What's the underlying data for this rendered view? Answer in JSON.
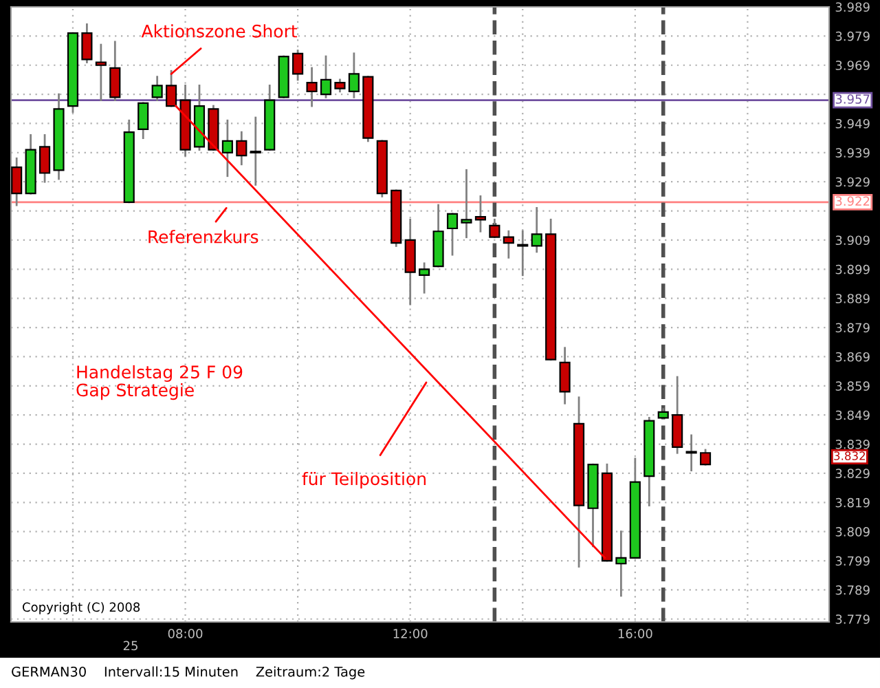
{
  "chart_data": {
    "type": "candlestick",
    "x": [
      5.0,
      5.25,
      5.5,
      5.75,
      6.0,
      6.25,
      6.5,
      6.75,
      7.0,
      7.25,
      7.5,
      7.75,
      8.0,
      8.25,
      8.5,
      8.75,
      9.0,
      9.25,
      9.5,
      9.75,
      10.0,
      10.25,
      10.5,
      10.75,
      11.0,
      11.25,
      11.5,
      11.75,
      12.0,
      12.25,
      12.5,
      12.75,
      13.0,
      13.25,
      13.5,
      13.75,
      14.0,
      14.25,
      14.5,
      14.75,
      15.0,
      15.25,
      15.5,
      15.75,
      16.0,
      16.25,
      16.5,
      16.75,
      17.0,
      17.25
    ],
    "ohlc": [
      [
        3934,
        3937,
        3921,
        3925
      ],
      [
        3925,
        3945,
        3925,
        3940
      ],
      [
        3941,
        3945,
        3929,
        3932
      ],
      [
        3933,
        3959,
        3930,
        3954
      ],
      [
        3955,
        3980,
        3953,
        3980
      ],
      [
        3980,
        3983,
        3970,
        3971
      ],
      [
        3970,
        3976,
        3957,
        3969
      ],
      [
        3968,
        3977,
        3957,
        3958
      ],
      [
        3922,
        3950,
        3922,
        3946
      ],
      [
        3947,
        3956,
        3944,
        3956
      ],
      [
        3958,
        3965,
        3957,
        3962
      ],
      [
        3962,
        3967,
        3955,
        3955
      ],
      [
        3957,
        3962,
        3938,
        3940
      ],
      [
        3941,
        3962,
        3940,
        3955
      ],
      [
        3954,
        3955,
        3940,
        3940
      ],
      [
        3939,
        3950,
        3931,
        3943
      ],
      [
        3943,
        3946,
        3935,
        3938
      ],
      [
        3939,
        3951,
        3928,
        3939
      ],
      [
        3940,
        3962,
        3940,
        3957
      ],
      [
        3958,
        3972,
        3958,
        3972
      ],
      [
        3973,
        3974,
        3964,
        3966
      ],
      [
        3963,
        3968,
        3955,
        3960
      ],
      [
        3959,
        3972,
        3958,
        3964
      ],
      [
        3963,
        3964,
        3960,
        3961
      ],
      [
        3960,
        3973,
        3958,
        3966
      ],
      [
        3965,
        3965,
        3943,
        3944
      ],
      [
        3943,
        3943,
        3924,
        3925
      ],
      [
        3926,
        3926,
        3907,
        3908
      ],
      [
        3909,
        3916,
        3887,
        3898
      ],
      [
        3897,
        3901,
        3891,
        3899
      ],
      [
        3900,
        3921,
        3900,
        3912
      ],
      [
        3913,
        3918,
        3904,
        3918
      ],
      [
        3915,
        3933,
        3910,
        3916
      ],
      [
        3917,
        3924,
        3912,
        3916
      ],
      [
        3914,
        3916,
        3910,
        3910
      ],
      [
        3910,
        3912,
        3903,
        3908
      ],
      [
        3907,
        3912,
        3897,
        3907
      ],
      [
        3907,
        3920,
        3905,
        3911
      ],
      [
        3911,
        3916,
        3868,
        3868
      ],
      [
        3867,
        3872,
        3853,
        3857
      ],
      [
        3846,
        3855,
        3797,
        3818
      ],
      [
        3817,
        3832,
        3804,
        3832
      ],
      [
        3829,
        3832,
        3799,
        3799
      ],
      [
        3798,
        3809,
        3787,
        3800
      ],
      [
        3800,
        3834,
        3800,
        3826
      ],
      [
        3828,
        3848,
        3818,
        3847
      ],
      [
        3848,
        3851,
        3848,
        3850
      ],
      [
        3849,
        3862,
        3836,
        3838
      ],
      [
        3836,
        3842,
        3830,
        3836
      ],
      [
        3836,
        3837,
        3832,
        3832
      ]
    ],
    "colors": [
      "#c80000",
      "#1ec81e",
      "#c80000",
      "#1ec81e",
      "#1ec81e",
      "#c80000",
      "#c80000",
      "#c80000",
      "#1ec81e",
      "#1ec81e",
      "#1ec81e",
      "#c80000",
      "#c80000",
      "#1ec81e",
      "#c80000",
      "#1ec81e",
      "#c80000",
      "#000000",
      "#1ec81e",
      "#1ec81e",
      "#c80000",
      "#c80000",
      "#1ec81e",
      "#c80000",
      "#1ec81e",
      "#c80000",
      "#c80000",
      "#c80000",
      "#c80000",
      "#1ec81e",
      "#1ec81e",
      "#1ec81e",
      "#1ec81e",
      "#c80000",
      "#c80000",
      "#c80000",
      "#000000",
      "#1ec81e",
      "#c80000",
      "#c80000",
      "#c80000",
      "#1ec81e",
      "#c80000",
      "#1ec81e",
      "#1ec81e",
      "#1ec81e",
      "#1ec81e",
      "#c80000",
      "#000000",
      "#c80000"
    ],
    "series": [
      {
        "type": "line",
        "color": "#ff0000",
        "x": [
          7.83,
          15.46
        ],
        "values": [
          3955,
          3800
        ]
      }
    ],
    "xlim": [
      4.9,
      19.45
    ],
    "xticks": [
      {
        "value": 6,
        "label": null
      },
      {
        "value": 8,
        "label": "08:00"
      },
      {
        "value": 10,
        "label": null
      },
      {
        "value": 12,
        "label": "12:00"
      },
      {
        "value": 14,
        "label": null
      },
      {
        "value": 16,
        "label": "16:00"
      },
      {
        "value": 18,
        "label": null
      }
    ],
    "ylim": [
      3778,
      3989
    ],
    "yticks": [
      {
        "value": 3779,
        "label": "3.779"
      },
      {
        "value": 3789,
        "label": "3.789"
      },
      {
        "value": 3799,
        "label": "3.799"
      },
      {
        "value": 3809,
        "label": "3.809"
      },
      {
        "value": 3819,
        "label": "3.819"
      },
      {
        "value": 3829,
        "label": "3.829"
      },
      {
        "value": 3839,
        "label": "3.839"
      },
      {
        "value": 3849,
        "label": "3.849"
      },
      {
        "value": 3859,
        "label": "3.859"
      },
      {
        "value": 3869,
        "label": "3.869"
      },
      {
        "value": 3879,
        "label": "3.879"
      },
      {
        "value": 3889,
        "label": "3.889"
      },
      {
        "value": 3899,
        "label": "3.899"
      },
      {
        "value": 3909,
        "label": "3.909"
      },
      {
        "value": 3919,
        "label": null
      },
      {
        "value": 3929,
        "label": "3.929"
      },
      {
        "value": 3939,
        "label": "3.939"
      },
      {
        "value": 3949,
        "label": "3.949"
      },
      {
        "value": 3959,
        "label": null
      },
      {
        "value": 3969,
        "label": "3.969"
      },
      {
        "value": 3979,
        "label": "3.979"
      },
      {
        "value": 3989,
        "label": "3.989"
      }
    ],
    "grid": true,
    "ref_lines": [
      {
        "axis": "y",
        "value": 3957,
        "label": "3.957",
        "color": "#7050a0"
      },
      {
        "axis": "y",
        "value": 3922,
        "label": "3.922",
        "color": "#ff8080"
      },
      {
        "axis": "x",
        "value": 13.5,
        "color": "#505050",
        "line_style": "dashed"
      },
      {
        "axis": "x",
        "value": 16.5,
        "color": "#505050",
        "line_style": "dashed"
      }
    ],
    "annotations": [
      {
        "text": "Aktionszone Short",
        "x": 7.75,
        "y": 3966
      },
      {
        "text": "Referenzkurs",
        "x": 8.73,
        "y": 3920
      },
      "für Teilposition",
      "Handelstag 25 F 09\nGap Strategie",
      "3.832",
      "25",
      "Copyright (C) 2008",
      "GERMAN30    Intervall:15 Minuten    Zeitraum:2 Tage"
    ]
  }
}
